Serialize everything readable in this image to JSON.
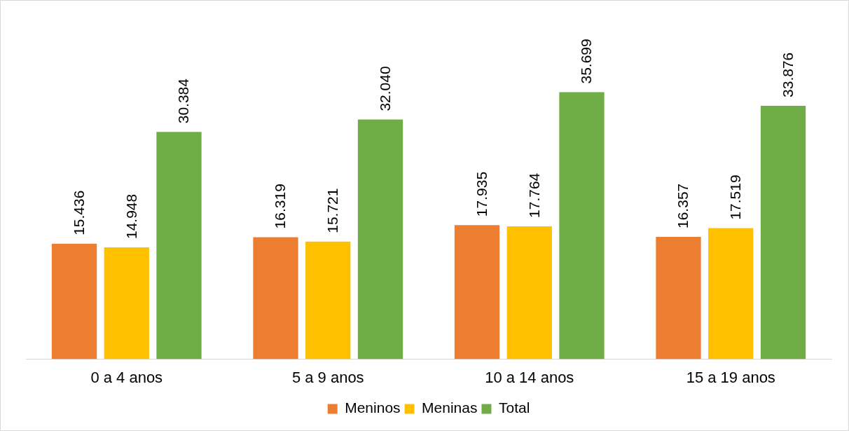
{
  "chart_data": {
    "type": "bar",
    "categories": [
      "0 a 4 anos",
      "5 a 9 anos",
      "10 a 14 anos",
      "15 a 19 anos"
    ],
    "series": [
      {
        "name": "Meninos",
        "color": "#ed7d31",
        "values": [
          15436,
          16319,
          17935,
          16357
        ],
        "value_labels": [
          "15.436",
          "16.319",
          "17.935",
          "16.357"
        ]
      },
      {
        "name": "Meninas",
        "color": "#ffc000",
        "values": [
          14948,
          15721,
          17764,
          17519
        ],
        "value_labels": [
          "14.948",
          "15.721",
          "17.764",
          "17.519"
        ]
      },
      {
        "name": "Total",
        "color": "#70ad47",
        "values": [
          30384,
          32040,
          35699,
          33876
        ],
        "value_labels": [
          "30.384",
          "32.040",
          "35.699",
          "33.876"
        ]
      }
    ],
    "legend": "bottom",
    "grid": false,
    "tick_labels": "x"
  }
}
